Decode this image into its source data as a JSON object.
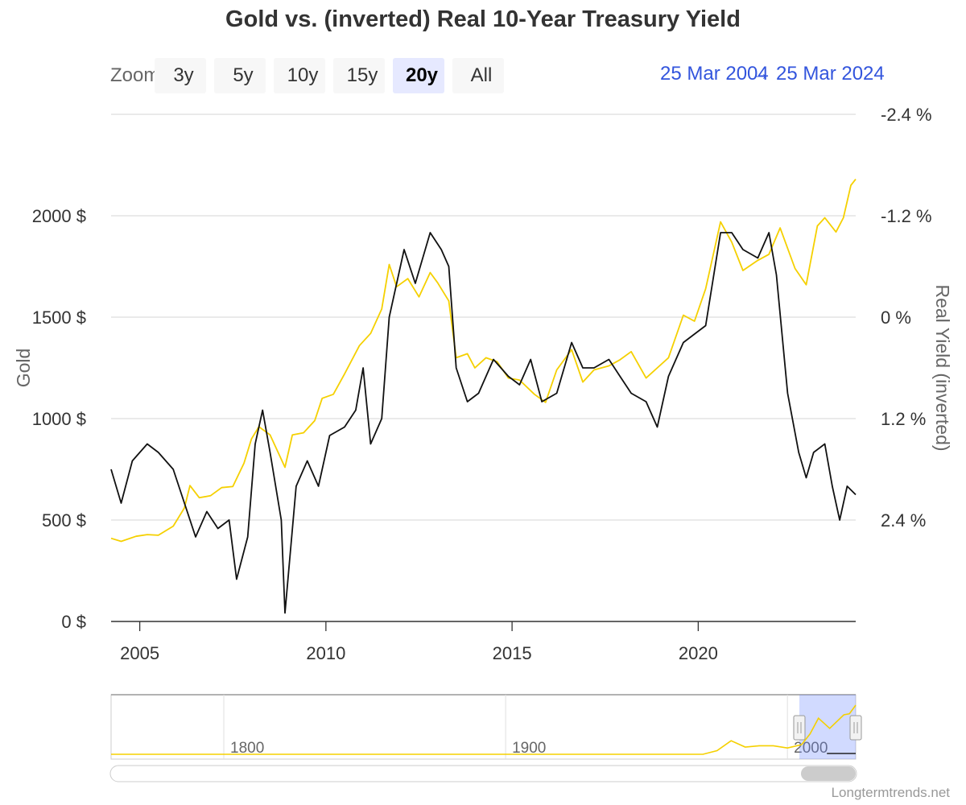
{
  "chart_data": {
    "type": "line",
    "title": "Gold vs. (inverted) Real 10-Year Treasury Yield",
    "y_left": {
      "label": "Gold",
      "min": 0,
      "max": 2500,
      "ticks": [
        0,
        500,
        1000,
        1500,
        2000
      ],
      "tick_labels": [
        "0 $",
        "500 $",
        "1000 $",
        "1500 $",
        "2000 $"
      ]
    },
    "y_right": {
      "label": "Real Yield (inverted)",
      "inverted": true,
      "min": -2.4,
      "max": 3.6,
      "ticks": [
        -2.4,
        -1.2,
        0,
        1.2,
        2.4
      ],
      "tick_labels": [
        "-2.4 %",
        "-1.2 %",
        "0 %",
        "1.2 %",
        "2.4 %"
      ]
    },
    "x_axis": {
      "min": 2004.23,
      "max": 2024.23,
      "ticks": [
        2005,
        2010,
        2015,
        2020
      ],
      "tick_labels": [
        "2005",
        "2010",
        "2015",
        "2020"
      ]
    },
    "grid": true,
    "legend": "none",
    "series": [
      {
        "axis": "left",
        "color": "#f5d000",
        "points": [
          [
            2004.23,
            410
          ],
          [
            2004.5,
            395
          ],
          [
            2004.9,
            420
          ],
          [
            2005.2,
            428
          ],
          [
            2005.5,
            425
          ],
          [
            2005.9,
            470
          ],
          [
            2006.2,
            560
          ],
          [
            2006.35,
            670
          ],
          [
            2006.6,
            610
          ],
          [
            2006.9,
            620
          ],
          [
            2007.2,
            660
          ],
          [
            2007.5,
            665
          ],
          [
            2007.8,
            780
          ],
          [
            2008.0,
            900
          ],
          [
            2008.2,
            960
          ],
          [
            2008.5,
            920
          ],
          [
            2008.7,
            840
          ],
          [
            2008.9,
            760
          ],
          [
            2009.1,
            920
          ],
          [
            2009.4,
            930
          ],
          [
            2009.7,
            990
          ],
          [
            2009.9,
            1100
          ],
          [
            2010.2,
            1120
          ],
          [
            2010.5,
            1220
          ],
          [
            2010.9,
            1360
          ],
          [
            2011.2,
            1420
          ],
          [
            2011.5,
            1540
          ],
          [
            2011.7,
            1760
          ],
          [
            2011.9,
            1650
          ],
          [
            2012.2,
            1690
          ],
          [
            2012.5,
            1600
          ],
          [
            2012.8,
            1720
          ],
          [
            2013.0,
            1670
          ],
          [
            2013.3,
            1580
          ],
          [
            2013.5,
            1300
          ],
          [
            2013.8,
            1320
          ],
          [
            2014.0,
            1250
          ],
          [
            2014.3,
            1300
          ],
          [
            2014.6,
            1280
          ],
          [
            2014.9,
            1200
          ],
          [
            2015.2,
            1190
          ],
          [
            2015.6,
            1120
          ],
          [
            2015.9,
            1080
          ],
          [
            2016.2,
            1240
          ],
          [
            2016.6,
            1340
          ],
          [
            2016.9,
            1180
          ],
          [
            2017.2,
            1240
          ],
          [
            2017.6,
            1260
          ],
          [
            2017.9,
            1290
          ],
          [
            2018.2,
            1330
          ],
          [
            2018.6,
            1200
          ],
          [
            2018.9,
            1250
          ],
          [
            2019.2,
            1300
          ],
          [
            2019.6,
            1510
          ],
          [
            2019.9,
            1480
          ],
          [
            2020.2,
            1640
          ],
          [
            2020.6,
            1970
          ],
          [
            2020.9,
            1870
          ],
          [
            2021.2,
            1730
          ],
          [
            2021.6,
            1780
          ],
          [
            2021.9,
            1810
          ],
          [
            2022.2,
            1940
          ],
          [
            2022.6,
            1740
          ],
          [
            2022.9,
            1660
          ],
          [
            2023.2,
            1950
          ],
          [
            2023.4,
            1990
          ],
          [
            2023.7,
            1920
          ],
          [
            2023.9,
            1990
          ],
          [
            2024.1,
            2150
          ],
          [
            2024.23,
            2180
          ]
        ]
      },
      {
        "axis": "right",
        "color": "#111111",
        "points": [
          [
            2004.23,
            1.8
          ],
          [
            2004.5,
            2.2
          ],
          [
            2004.8,
            1.7
          ],
          [
            2005.2,
            1.5
          ],
          [
            2005.5,
            1.6
          ],
          [
            2005.9,
            1.8
          ],
          [
            2006.2,
            2.2
          ],
          [
            2006.5,
            2.6
          ],
          [
            2006.8,
            2.3
          ],
          [
            2007.1,
            2.5
          ],
          [
            2007.4,
            2.4
          ],
          [
            2007.6,
            3.1
          ],
          [
            2007.9,
            2.6
          ],
          [
            2008.1,
            1.5
          ],
          [
            2008.3,
            1.1
          ],
          [
            2008.5,
            1.6
          ],
          [
            2008.8,
            2.4
          ],
          [
            2008.9,
            3.5
          ],
          [
            2009.2,
            2.0
          ],
          [
            2009.5,
            1.7
          ],
          [
            2009.8,
            2.0
          ],
          [
            2010.1,
            1.4
          ],
          [
            2010.5,
            1.3
          ],
          [
            2010.8,
            1.1
          ],
          [
            2011.0,
            0.6
          ],
          [
            2011.2,
            1.5
          ],
          [
            2011.5,
            1.2
          ],
          [
            2011.7,
            0.0
          ],
          [
            2012.1,
            -0.8
          ],
          [
            2012.4,
            -0.4
          ],
          [
            2012.8,
            -1.0
          ],
          [
            2013.1,
            -0.8
          ],
          [
            2013.3,
            -0.6
          ],
          [
            2013.5,
            0.6
          ],
          [
            2013.8,
            1.0
          ],
          [
            2014.1,
            0.9
          ],
          [
            2014.5,
            0.5
          ],
          [
            2014.9,
            0.7
          ],
          [
            2015.2,
            0.8
          ],
          [
            2015.5,
            0.5
          ],
          [
            2015.8,
            1.0
          ],
          [
            2016.2,
            0.9
          ],
          [
            2016.6,
            0.3
          ],
          [
            2016.9,
            0.6
          ],
          [
            2017.2,
            0.6
          ],
          [
            2017.6,
            0.5
          ],
          [
            2017.9,
            0.7
          ],
          [
            2018.2,
            0.9
          ],
          [
            2018.6,
            1.0
          ],
          [
            2018.9,
            1.3
          ],
          [
            2019.2,
            0.7
          ],
          [
            2019.6,
            0.3
          ],
          [
            2019.9,
            0.2
          ],
          [
            2020.2,
            0.1
          ],
          [
            2020.6,
            -1.0
          ],
          [
            2020.9,
            -1.0
          ],
          [
            2021.2,
            -0.8
          ],
          [
            2021.6,
            -0.7
          ],
          [
            2021.9,
            -1.0
          ],
          [
            2022.1,
            -0.5
          ],
          [
            2022.4,
            0.9
          ],
          [
            2022.7,
            1.6
          ],
          [
            2022.9,
            1.9
          ],
          [
            2023.1,
            1.6
          ],
          [
            2023.4,
            1.5
          ],
          [
            2023.6,
            2.0
          ],
          [
            2023.8,
            2.4
          ],
          [
            2024.0,
            2.0
          ],
          [
            2024.23,
            2.1
          ]
        ]
      }
    ]
  },
  "zoom": {
    "label": "Zoom",
    "buttons": [
      "3y",
      "5y",
      "10y",
      "15y",
      "20y",
      "All"
    ],
    "active": "20y"
  },
  "range_selector": {
    "from": "25 Mar 2004",
    "separator": "→",
    "to": "25 Mar 2024"
  },
  "navigator": {
    "x_min": 1760,
    "x_max": 2024.23,
    "tick_labels": [
      "1800",
      "1900",
      "2000"
    ],
    "selected_from": 2004.23,
    "selected_to": 2024.23,
    "series_points": [
      [
        1760,
        0
      ],
      [
        1850,
        0
      ],
      [
        1900,
        0
      ],
      [
        1970,
        0
      ],
      [
        1975,
        160
      ],
      [
        1980,
        600
      ],
      [
        1985,
        320
      ],
      [
        1990,
        380
      ],
      [
        1995,
        380
      ],
      [
        2000,
        280
      ],
      [
        2005,
        430
      ],
      [
        2008,
        900
      ],
      [
        2011,
        1600
      ],
      [
        2015,
        1150
      ],
      [
        2020,
        1750
      ],
      [
        2022,
        1800
      ],
      [
        2024.23,
        2180
      ]
    ]
  },
  "credits": "Longtermtrends.net"
}
